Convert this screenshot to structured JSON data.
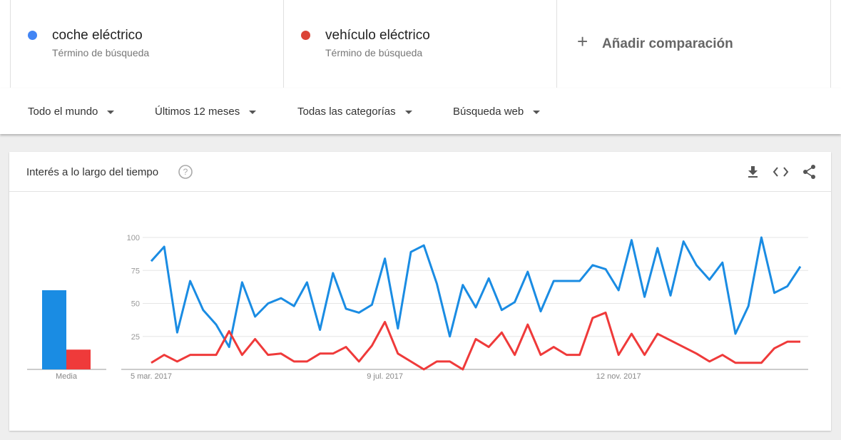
{
  "search_term_type": "Término de búsqueda",
  "add_comparison": "Añadir comparación",
  "filters": [
    "Todo el mundo",
    "Últimos 12 meses",
    "Todas las categorías",
    "Búsqueda web"
  ],
  "card_title": "Interés a lo largo del tiempo",
  "chart_data": {
    "type": "line",
    "categories": [
      "5 mar. 2017",
      null,
      null,
      null,
      null,
      null,
      null,
      null,
      null,
      null,
      null,
      null,
      null,
      null,
      null,
      null,
      null,
      null,
      "9 jul. 2017",
      null,
      null,
      null,
      null,
      null,
      null,
      null,
      null,
      null,
      null,
      null,
      null,
      null,
      null,
      null,
      null,
      null,
      "12 nov. 2017",
      null,
      null,
      null,
      null,
      null,
      null,
      null,
      null,
      null,
      null,
      null,
      null,
      null,
      null
    ],
    "ylim": [
      0,
      100
    ],
    "yticks": [
      25,
      50,
      75,
      100
    ],
    "grid": true,
    "average_label": "Media",
    "series": [
      {
        "name": "coche eléctrico",
        "color": "#1a8ce3",
        "dot_color": "#4285f4",
        "average": 60,
        "values": [
          82,
          93,
          28,
          67,
          45,
          34,
          17,
          66,
          40,
          50,
          54,
          48,
          66,
          30,
          73,
          46,
          43,
          49,
          84,
          31,
          89,
          94,
          65,
          25,
          64,
          47,
          69,
          45,
          51,
          74,
          44,
          67,
          67,
          67,
          79,
          76,
          60,
          98,
          55,
          92,
          56,
          97,
          79,
          68,
          81,
          27,
          48,
          100,
          58,
          63,
          78
        ]
      },
      {
        "name": "vehículo eléctrico",
        "color": "#ef3a3a",
        "dot_color": "#db4437",
        "average": 15,
        "values": [
          5,
          11,
          6,
          11,
          11,
          11,
          29,
          11,
          23,
          11,
          12,
          6,
          6,
          12,
          12,
          17,
          6,
          18,
          36,
          12,
          6,
          0,
          6,
          6,
          0,
          23,
          17,
          28,
          11,
          34,
          11,
          17,
          11,
          11,
          39,
          43,
          11,
          27,
          11,
          27,
          22,
          17,
          12,
          6,
          11,
          5,
          5,
          5,
          16,
          21,
          21
        ]
      }
    ]
  }
}
